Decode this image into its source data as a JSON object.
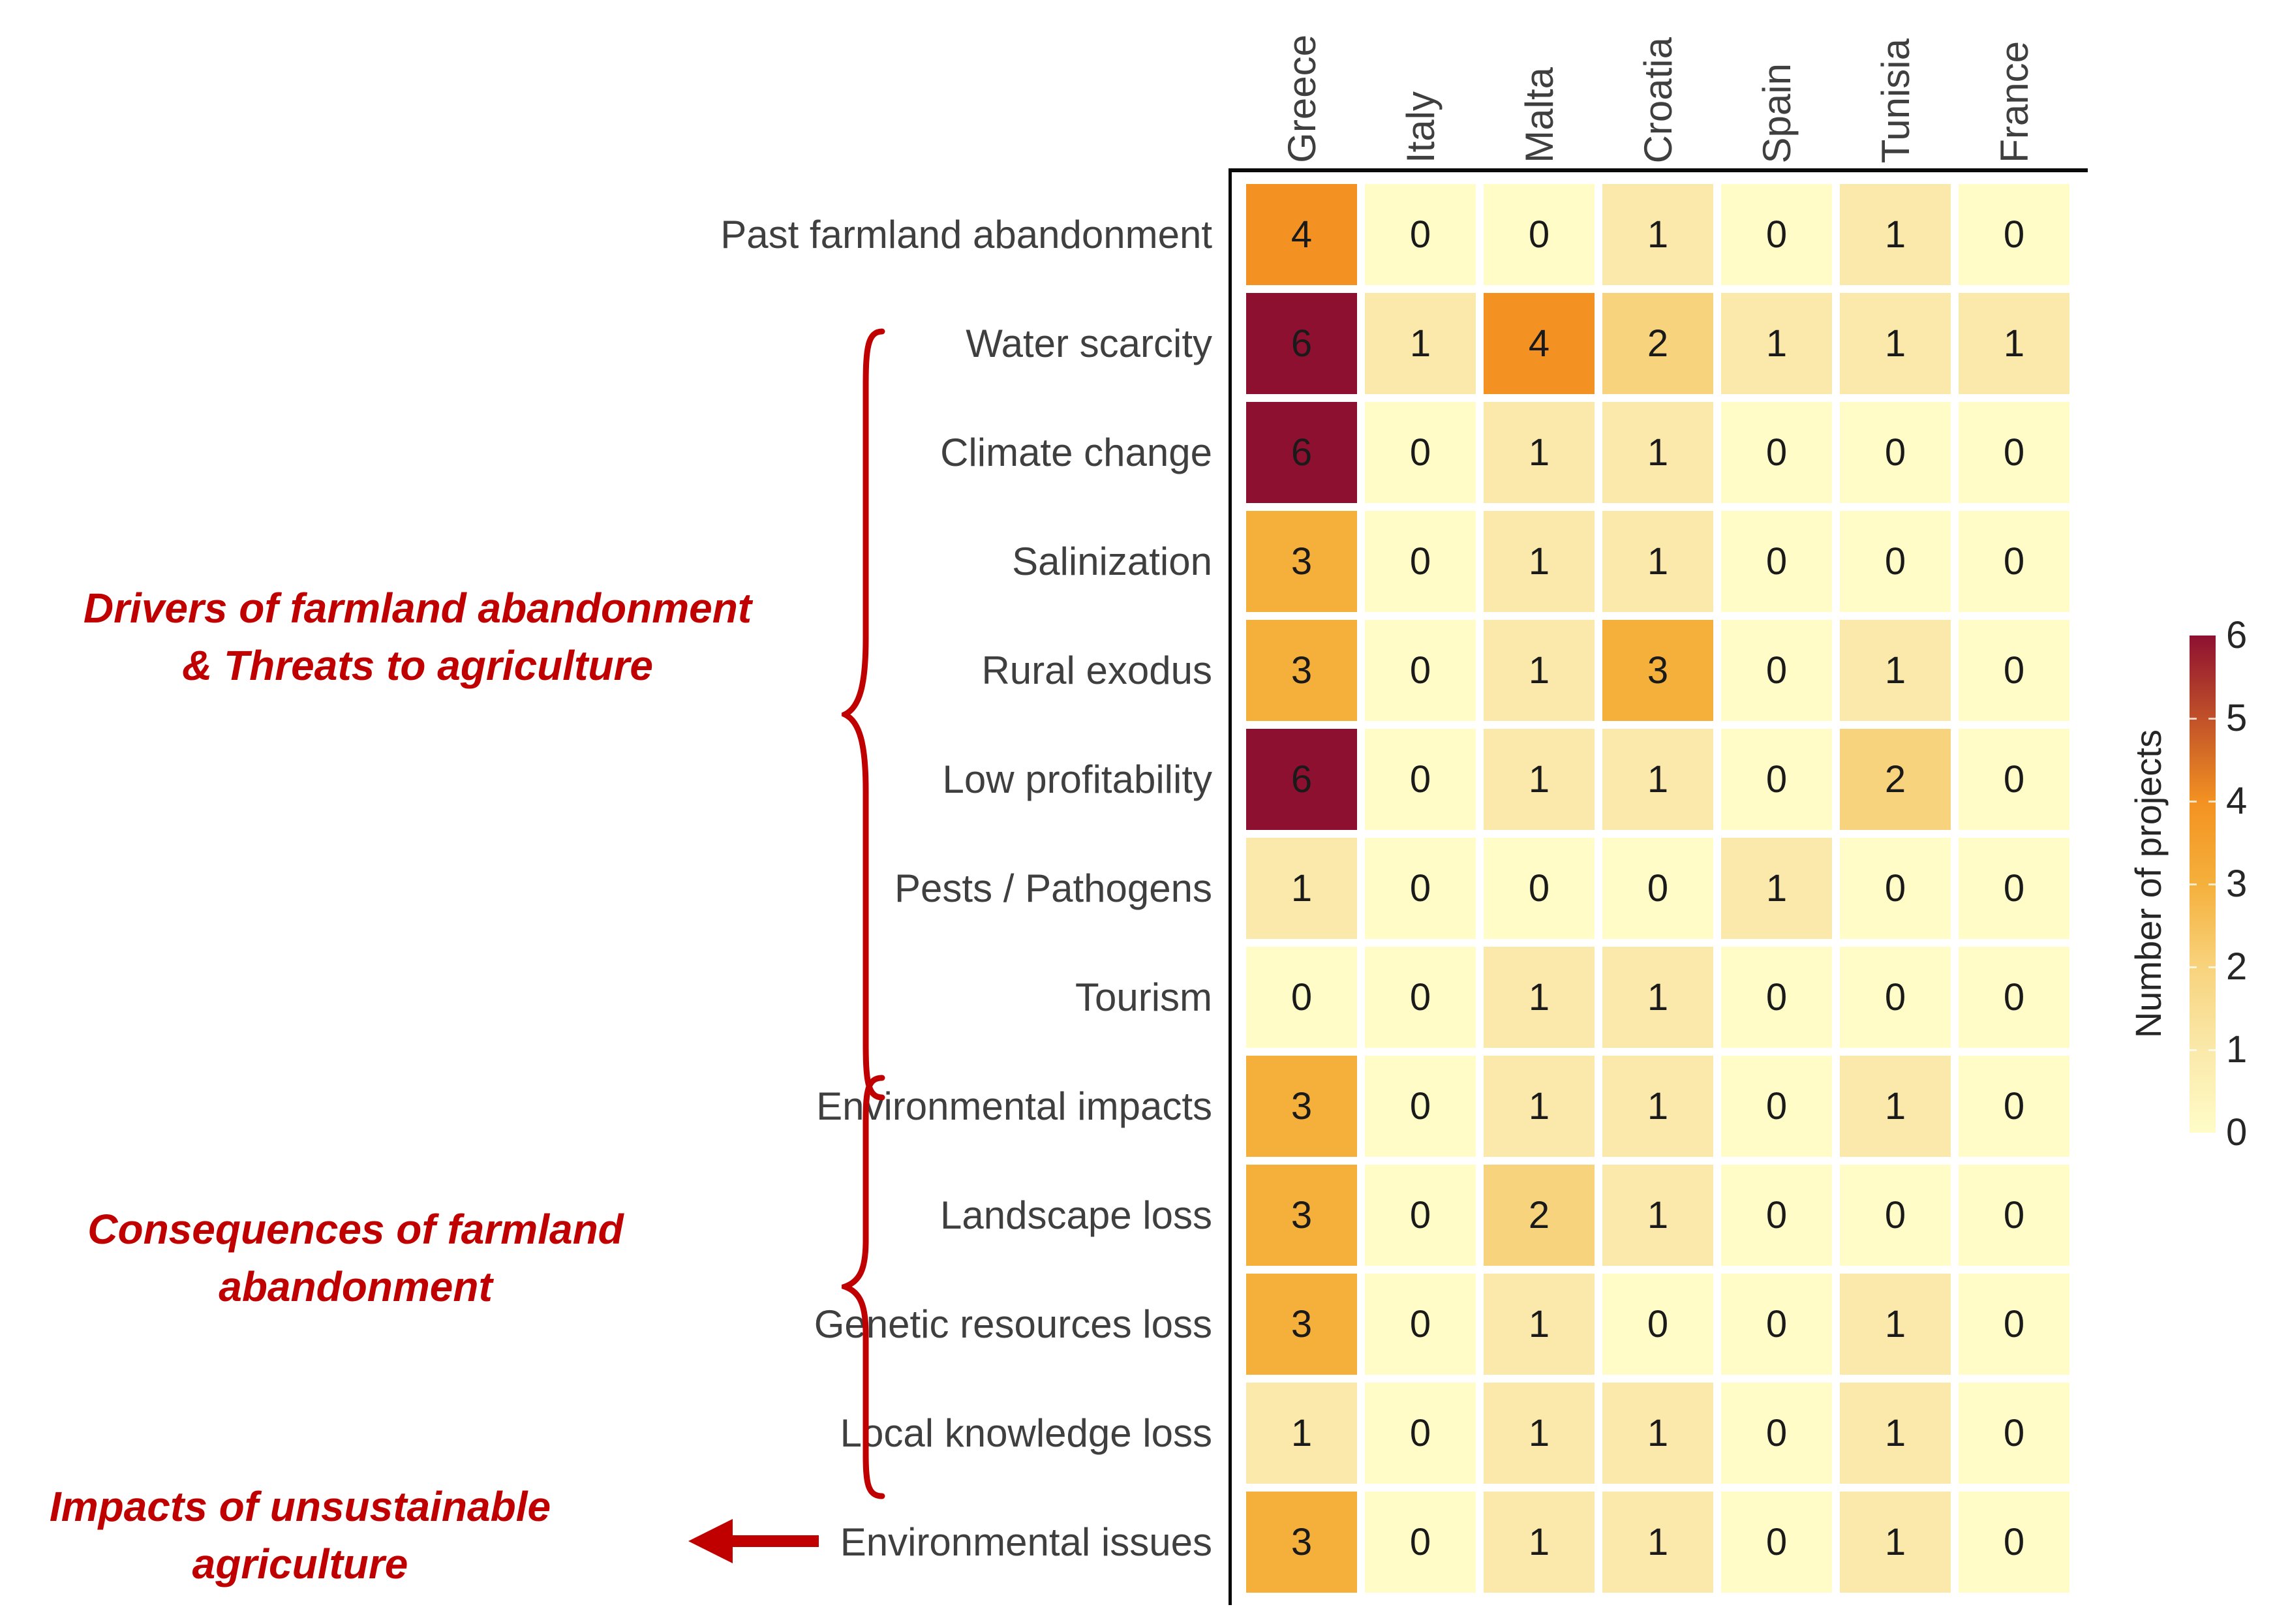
{
  "chart_data": {
    "type": "heatmap",
    "legend_title": "Number of projects",
    "columns": [
      "Greece",
      "Italy",
      "Malta",
      "Croatia",
      "Spain",
      "Tunisia",
      "France"
    ],
    "rows": [
      "Past farmland abandonment",
      "Water scarcity",
      "Climate change",
      "Salinization",
      "Rural exodus",
      "Low profitability",
      "Pests / Pathogens",
      "Tourism",
      "Environmental impacts",
      "Landscape loss",
      "Genetic resources loss",
      "Local knowledge loss",
      "Environmental issues"
    ],
    "values": [
      [
        4,
        0,
        0,
        1,
        0,
        1,
        0
      ],
      [
        6,
        1,
        4,
        2,
        1,
        1,
        1
      ],
      [
        6,
        0,
        1,
        1,
        0,
        0,
        0
      ],
      [
        3,
        0,
        1,
        1,
        0,
        0,
        0
      ],
      [
        3,
        0,
        1,
        3,
        0,
        1,
        0
      ],
      [
        6,
        0,
        1,
        1,
        0,
        2,
        0
      ],
      [
        1,
        0,
        0,
        0,
        1,
        0,
        0
      ],
      [
        0,
        0,
        1,
        1,
        0,
        0,
        0
      ],
      [
        3,
        0,
        1,
        1,
        0,
        1,
        0
      ],
      [
        3,
        0,
        2,
        1,
        0,
        0,
        0
      ],
      [
        3,
        0,
        1,
        0,
        0,
        1,
        0
      ],
      [
        1,
        0,
        1,
        1,
        0,
        1,
        0
      ],
      [
        3,
        0,
        1,
        1,
        0,
        1,
        0
      ]
    ],
    "scale": {
      "min": 0,
      "max": 6,
      "ticks": [
        6,
        5,
        4,
        3,
        2,
        1,
        0
      ]
    },
    "value_colors": {
      "0": "#FFFCC8",
      "1": "#FAE9AA",
      "2": "#F8D37D",
      "3": "#F5B03C",
      "4": "#F39222",
      "5": "#C05129",
      "6": "#8E1031"
    },
    "legend_position": "right",
    "grid": "off"
  },
  "annotations": {
    "accent_color": "#C00000",
    "drivers": {
      "line1": "Drivers of farmland abandonment",
      "line2": "& Threats to agriculture",
      "marker": "curly-brace",
      "covers_rows": "Water scarcity – Tourism"
    },
    "consequences": {
      "line1": "Consequences of farmland",
      "line2": "abandonment",
      "marker": "curly-brace",
      "covers_rows": "Environmental impacts – Local knowledge loss"
    },
    "impacts": {
      "line1": "Impacts of unsustainable",
      "line2": "agriculture",
      "marker": "left-arrow",
      "covers_rows": "Environmental issues"
    }
  }
}
